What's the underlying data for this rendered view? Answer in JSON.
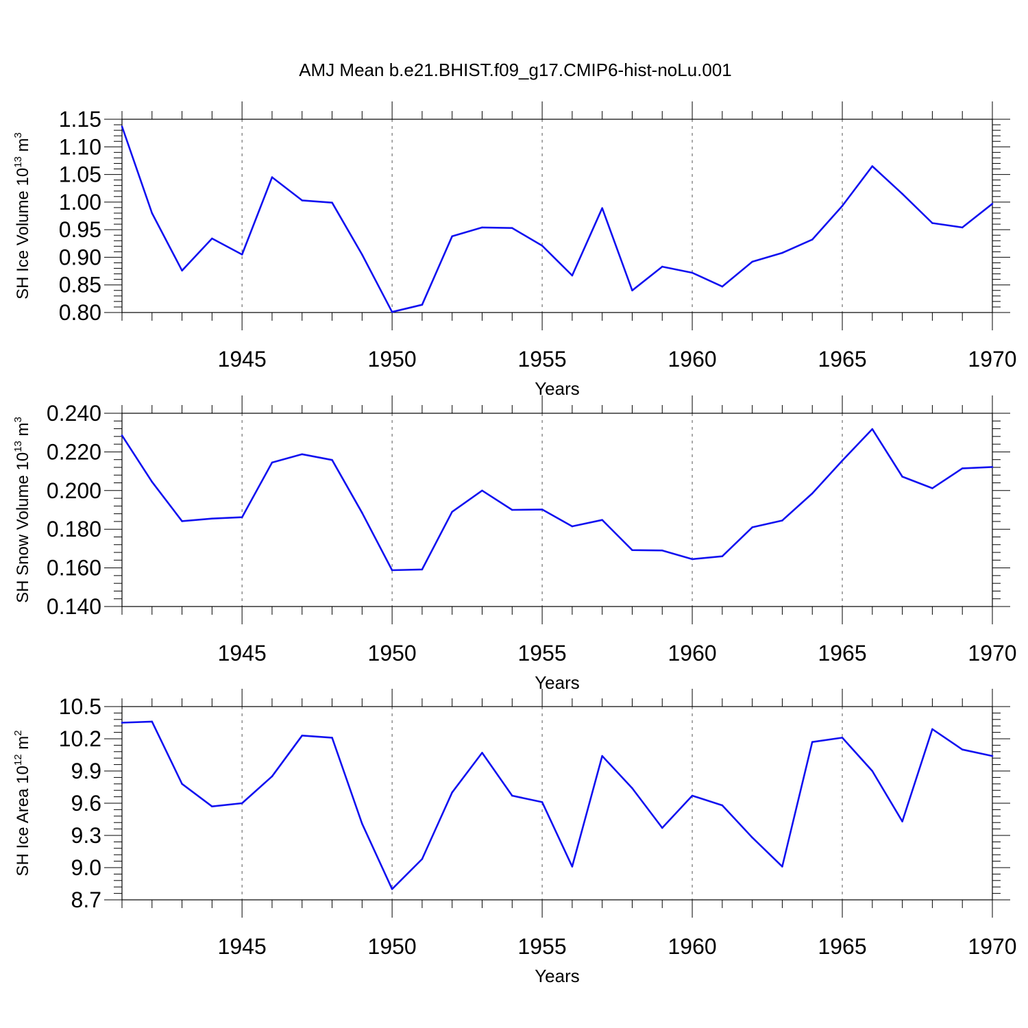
{
  "page_title": "AMJ Mean b.e21.BHIST.f09_g17.CMIP6-hist-noLu.001",
  "colors": {
    "series_line": "#1010f0",
    "axis": "#000000",
    "grid": "#555555"
  },
  "chart_data": [
    {
      "type": "line",
      "title": "AMJ Mean b.e21.BHIST.f09_g17.CMIP6-hist-noLu.001",
      "xlabel": "Years",
      "ylabel": {
        "main": "SH Ice Volume 10",
        "exp": "13",
        "unit": " m",
        "unit_exp": "3"
      },
      "x": [
        1941,
        1942,
        1943,
        1944,
        1945,
        1946,
        1947,
        1948,
        1949,
        1950,
        1951,
        1952,
        1953,
        1954,
        1955,
        1956,
        1957,
        1958,
        1959,
        1960,
        1961,
        1962,
        1963,
        1964,
        1965,
        1966,
        1967,
        1968,
        1969,
        1970
      ],
      "series": [
        {
          "name": "SH Ice Volume",
          "values": [
            1.137,
            0.98,
            0.876,
            0.934,
            0.905,
            1.045,
            1.003,
            0.999,
            0.905,
            0.801,
            0.814,
            0.938,
            0.954,
            0.953,
            0.921,
            0.867,
            0.989,
            0.84,
            0.883,
            0.872,
            0.847,
            0.892,
            0.908,
            0.932,
            0.993,
            1.065,
            1.015,
            0.962,
            0.954,
            0.997
          ]
        }
      ],
      "xlim": [
        1941,
        1970
      ],
      "ylim": [
        0.8,
        1.15
      ],
      "xticks": [
        "1945",
        "1950",
        "1955",
        "1960",
        "1965",
        "1970"
      ],
      "yticks": [
        "0.80",
        "0.85",
        "0.90",
        "0.95",
        "1.00",
        "1.05",
        "1.10",
        "1.15"
      ],
      "grid": "vertical dashed at major x ticks"
    },
    {
      "type": "line",
      "xlabel": "Years",
      "ylabel": {
        "main": "SH Snow Volume 10",
        "exp": "13",
        "unit": " m",
        "unit_exp": "3"
      },
      "x": [
        1941,
        1942,
        1943,
        1944,
        1945,
        1946,
        1947,
        1948,
        1949,
        1950,
        1951,
        1952,
        1953,
        1954,
        1955,
        1956,
        1957,
        1958,
        1959,
        1960,
        1961,
        1962,
        1963,
        1964,
        1965,
        1966,
        1967,
        1968,
        1969,
        1970
      ],
      "series": [
        {
          "name": "SH Snow Volume",
          "values": [
            0.2285,
            0.2045,
            0.1842,
            0.1855,
            0.1862,
            0.2145,
            0.2188,
            0.2158,
            0.1885,
            0.1588,
            0.1592,
            0.189,
            0.2,
            0.19,
            0.1902,
            0.1815,
            0.1848,
            0.1692,
            0.169,
            0.1645,
            0.166,
            0.181,
            0.1845,
            0.1985,
            0.2155,
            0.2318,
            0.2072,
            0.2012,
            0.2115,
            0.2122
          ]
        }
      ],
      "xlim": [
        1941,
        1970
      ],
      "ylim": [
        0.14,
        0.24
      ],
      "xticks": [
        "1945",
        "1950",
        "1955",
        "1960",
        "1965",
        "1970"
      ],
      "yticks": [
        "0.140",
        "0.160",
        "0.180",
        "0.200",
        "0.220",
        "0.240"
      ],
      "grid": "vertical dashed at major x ticks"
    },
    {
      "type": "line",
      "xlabel": "Years",
      "ylabel": {
        "main": "SH Ice Area 10",
        "exp": "12",
        "unit": " m",
        "unit_exp": "2"
      },
      "x": [
        1941,
        1942,
        1943,
        1944,
        1945,
        1946,
        1947,
        1948,
        1949,
        1950,
        1951,
        1952,
        1953,
        1954,
        1955,
        1956,
        1957,
        1958,
        1959,
        1960,
        1961,
        1962,
        1963,
        1964,
        1965,
        1966,
        1967,
        1968,
        1969,
        1970
      ],
      "series": [
        {
          "name": "SH Ice Area",
          "values": [
            10.35,
            10.36,
            9.78,
            9.57,
            9.6,
            9.85,
            10.23,
            10.21,
            9.41,
            8.8,
            9.08,
            9.7,
            10.07,
            9.67,
            9.61,
            9.01,
            10.04,
            9.74,
            9.37,
            9.67,
            9.58,
            9.28,
            9.01,
            10.17,
            10.21,
            9.9,
            9.43,
            10.29,
            10.1,
            10.04
          ]
        }
      ],
      "xlim": [
        1941,
        1970
      ],
      "ylim": [
        8.7,
        10.5
      ],
      "xticks": [
        "1945",
        "1950",
        "1955",
        "1960",
        "1965",
        "1970"
      ],
      "yticks": [
        "8.7",
        "9.0",
        "9.3",
        "9.6",
        "9.9",
        "10.2",
        "10.5"
      ],
      "grid": "vertical dashed at major x ticks"
    }
  ]
}
